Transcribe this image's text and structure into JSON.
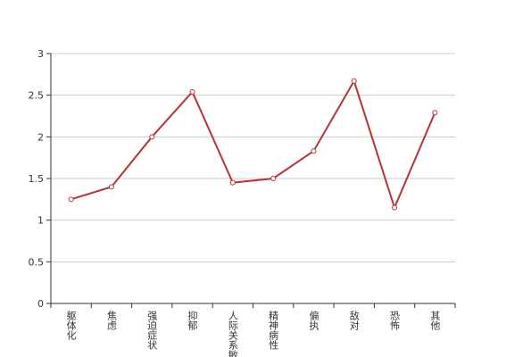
{
  "chart_data": {
    "type": "line",
    "categories": [
      "躯体化",
      "焦虑",
      "强迫症状",
      "抑郁",
      "人际关系敏感",
      "精神病性",
      "偏执",
      "敌对",
      "恐怖",
      "其他"
    ],
    "values": [
      1.25,
      1.4,
      2.0,
      2.54,
      1.45,
      1.5,
      1.83,
      2.67,
      1.15,
      2.29
    ],
    "color": "#b73236",
    "ylim": [
      0,
      3
    ],
    "yticks": [
      0,
      0.5,
      1,
      1.5,
      2,
      2.5,
      3
    ],
    "grid": true
  }
}
